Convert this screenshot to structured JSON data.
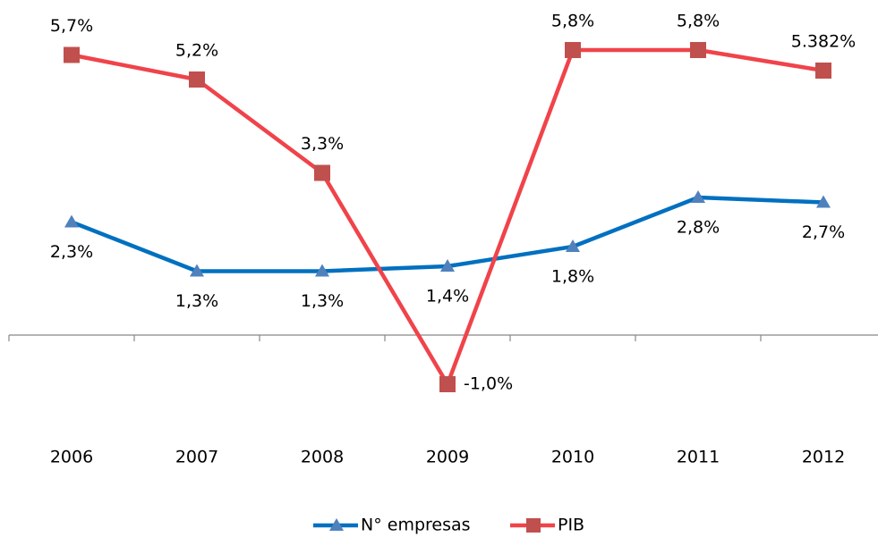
{
  "chart_data": {
    "type": "line",
    "categories": [
      "2006",
      "2007",
      "2008",
      "2009",
      "2010",
      "2011",
      "2012"
    ],
    "ylim": [
      -2,
      7
    ],
    "legend": "bottom",
    "series": [
      {
        "name": "N° empresas",
        "color": "#0070c0",
        "marker_color": "#4f81bd",
        "marker": "triangle",
        "values": [
          2.3,
          1.3,
          1.3,
          1.4,
          1.8,
          2.8,
          2.7
        ],
        "value_labels": [
          "2,3%",
          "1,3%",
          "1,3%",
          "1,4%",
          "1,8%",
          "2,8%",
          "2,7%"
        ]
      },
      {
        "name": "PIB",
        "color": "#f0434a",
        "marker_color": "#c0504d",
        "marker": "square",
        "values": [
          5.7,
          5.2,
          3.3,
          -1.0,
          5.8,
          5.8,
          5.382
        ],
        "value_labels": [
          "5,7%",
          "5,2%",
          "3,3%",
          "-1,0%",
          "5,8%",
          "5,8%",
          "5.382%"
        ]
      }
    ]
  }
}
